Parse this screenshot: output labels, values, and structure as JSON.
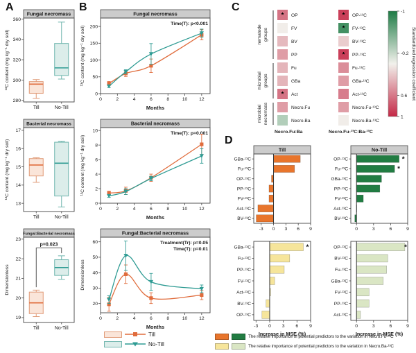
{
  "figure": {
    "panel_labels": {
      "A": "A",
      "B": "B",
      "C": "C",
      "D": "D"
    }
  },
  "legend": {
    "till": "Till",
    "no_till": "No-Till",
    "importance_fu": "The relative importance of potential predictors to the variation in Necro.Fu-¹³C",
    "importance_ba": "The relative importance of potential predictors to the variation in Necro.Ba-¹³C"
  },
  "colors": {
    "till": "#E06C3C",
    "till_fill": "#FAE5D9",
    "till_edge": "#E09A77",
    "no_till": "#2E9B93",
    "no_till_fill": "#DCEDEA",
    "no_till_edge": "#6FB5AD",
    "bar_orange": "#E8752C",
    "bar_green": "#217C42",
    "bar_yellow": "#F6E59B",
    "bar_lightgreen": "#DAE6C4",
    "header_bg": "#CCCCCC",
    "heat_red": "#C42846",
    "heat_green": "#1E7B45",
    "heat_mid": "#F2F1EC"
  },
  "chart_data": [
    {
      "id": "a1",
      "type": "box",
      "title": "Fungal necromass",
      "ylabel": "¹³C content (mg kg⁻¹ dry soil)",
      "ylim": [
        278.5,
        361
      ],
      "yticks": [
        280,
        300,
        320,
        340,
        360
      ],
      "categories": [
        "Till",
        "No-Till"
      ],
      "boxes": [
        {
          "group": "Till",
          "whisker_low": 282,
          "q1": 287,
          "median": 296,
          "q3": 298.5,
          "whisker_high": 300.5
        },
        {
          "group": "No-Till",
          "whisker_low": 301,
          "q1": 304.5,
          "median": 312,
          "q3": 336,
          "whisker_high": 357
        }
      ]
    },
    {
      "id": "a2",
      "type": "box",
      "title": "Bacterial necromass",
      "ylabel": "¹³C content (mg kg⁻¹ dry soil)",
      "ylim": [
        12.55,
        17.15
      ],
      "yticks": [
        13,
        14,
        15,
        16,
        17
      ],
      "categories": [
        "Till",
        "No-Till"
      ],
      "boxes": [
        {
          "group": "Till",
          "whisker_low": 14.15,
          "q1": 14.5,
          "median": 15.1,
          "q3": 15.45,
          "whisker_high": 15.5
        },
        {
          "group": "No-Till",
          "whisker_low": 12.8,
          "q1": 13.4,
          "median": 15.2,
          "q3": 16.35,
          "whisker_high": 16.4
        }
      ]
    },
    {
      "id": "a3",
      "type": "box",
      "title": "Fungal:Bacterial necromass",
      "ylabel": "Dimensionless",
      "ylim": [
        18.75,
        23.1
      ],
      "yticks": [
        19,
        20,
        21,
        22,
        23
      ],
      "categories": [
        "Till",
        "No-Till"
      ],
      "boxes": [
        {
          "group": "Till",
          "whisker_low": 19.05,
          "q1": 19.2,
          "median": 19.75,
          "q3": 20.3,
          "whisker_high": 20.4
        },
        {
          "group": "No-Till",
          "whisker_low": 20.95,
          "q1": 21.15,
          "median": 21.55,
          "q3": 21.95,
          "whisker_high": 22.15
        }
      ],
      "significance": {
        "label": "p=0.023",
        "bar_y": 22.55,
        "left_leg_to": 20.55,
        "right_leg_to": 22.28
      }
    },
    {
      "id": "b1",
      "type": "line",
      "title": "Fungal necromass",
      "annotations": [
        "Time(T): p<0.001"
      ],
      "xlabel": "Months",
      "ylabel": "¹³C content (mg kg⁻¹ dry soil)",
      "xlim": [
        0,
        13
      ],
      "xticks": [
        0,
        2,
        4,
        6,
        8,
        10,
        12
      ],
      "ylim": [
        0,
        225
      ],
      "yticks": [
        0,
        50,
        100,
        150,
        200
      ],
      "x": [
        1,
        3,
        6,
        12
      ],
      "series": [
        {
          "name": "Till",
          "marker": "square",
          "values": [
            30,
            60,
            83,
            175
          ],
          "errors": [
            6,
            9,
            20,
            15
          ]
        },
        {
          "name": "No-Till",
          "marker": "triangle",
          "values": [
            22,
            65,
            118,
            180
          ],
          "errors": [
            4,
            6,
            31,
            12
          ]
        }
      ]
    },
    {
      "id": "b2",
      "type": "line",
      "title": "Bacterial necromass",
      "annotations": [
        "Time(T): p=0.001"
      ],
      "xlabel": "Months",
      "ylabel": "¹³C content (mg kg⁻¹ dry soil)",
      "xlim": [
        0,
        13
      ],
      "xticks": [
        0,
        2,
        4,
        6,
        8,
        10,
        12
      ],
      "ylim": [
        0,
        10.4
      ],
      "yticks": [
        0,
        2,
        4,
        6,
        8,
        10
      ],
      "x": [
        1,
        3,
        6,
        12
      ],
      "series": [
        {
          "name": "Till",
          "marker": "square",
          "values": [
            1.4,
            1.7,
            3.5,
            8.1
          ],
          "errors": [
            0.25,
            0.5,
            0.5,
            1.4
          ]
        },
        {
          "name": "No-Till",
          "marker": "triangle",
          "values": [
            1.0,
            1.6,
            3.4,
            6.5
          ],
          "errors": [
            0.2,
            0.4,
            0.3,
            1.0
          ]
        }
      ]
    },
    {
      "id": "b3",
      "type": "line",
      "title": "Fungal:Bacterial necromass",
      "annotations": [
        "Treatment(Tr): p=0.05",
        "Time(T): p=0.01"
      ],
      "xlabel": "Months",
      "ylabel": "Dimensionless",
      "xlim": [
        0,
        13
      ],
      "xticks": [
        0,
        2,
        4,
        6,
        8,
        10,
        12
      ],
      "ylim": [
        14,
        63
      ],
      "yticks": [
        20,
        30,
        40,
        50,
        60
      ],
      "x": [
        1,
        3,
        6,
        12
      ],
      "series": [
        {
          "name": "Till",
          "marker": "square",
          "values": [
            19.5,
            39,
            23.5,
            25.5
          ],
          "errors": [
            4.5,
            6,
            3.5,
            3
          ]
        },
        {
          "name": "No-Till",
          "marker": "triangle",
          "values": [
            22.5,
            51,
            34,
            29.5
          ],
          "errors": [
            2.5,
            9.5,
            5.5,
            2.5
          ]
        }
      ]
    },
    {
      "id": "c",
      "type": "heatmap",
      "columns": [
        {
          "label": "Necro.Fu:Ba"
        },
        {
          "label": "Necro.Fu-¹³C:Ba-¹³C"
        }
      ],
      "row_groups": [
        {
          "label": "nematode groups",
          "rows": [
            0,
            3
          ]
        },
        {
          "label": "microbial groups",
          "rows": [
            4,
            6
          ]
        },
        {
          "label": "microbial necromass",
          "rows": [
            7,
            8
          ]
        }
      ],
      "rows": [
        {
          "labels": [
            "OP",
            "OP-¹³C"
          ],
          "values": [
            0.62,
            0.88
          ],
          "sig": [
            true,
            true
          ]
        },
        {
          "labels": [
            "FV",
            "FV-¹³C"
          ],
          "values": [
            0.02,
            -0.82
          ],
          "sig": [
            false,
            true
          ]
        },
        {
          "labels": [
            "BV",
            "BV-¹³C"
          ],
          "values": [
            0.28,
            0.18
          ],
          "sig": [
            false,
            false
          ]
        },
        {
          "labels": [
            "PP",
            "PP-¹³C"
          ],
          "values": [
            0.42,
            0.88
          ],
          "sig": [
            false,
            true
          ]
        },
        {
          "labels": [
            "Fu",
            "Fu-¹³C"
          ],
          "values": [
            0.3,
            0.5
          ],
          "sig": [
            false,
            false
          ]
        },
        {
          "labels": [
            "GBa",
            "GBa-¹³C"
          ],
          "values": [
            0.3,
            0.42
          ],
          "sig": [
            false,
            false
          ]
        },
        {
          "labels": [
            "Act",
            "Act-¹³C"
          ],
          "values": [
            0.62,
            0.58
          ],
          "sig": [
            true,
            false
          ]
        },
        {
          "labels": [
            "Necro.Fu",
            "Necro.Fu-¹³C"
          ],
          "values": [
            0.42,
            0.42
          ],
          "sig": [
            false,
            false
          ]
        },
        {
          "labels": [
            "Necro.Ba",
            "Necro.Ba-¹³C"
          ],
          "values": [
            -0.3,
            0.02
          ],
          "sig": [
            false,
            false
          ]
        }
      ],
      "colorbar": {
        "label": "Standardized regression coefficient",
        "domain": [
          -1,
          1
        ],
        "ticks": [
          -1,
          -0.2,
          0.6,
          1
        ]
      }
    },
    {
      "id": "d1",
      "type": "bar",
      "title": "Till",
      "color_key": "bar_orange",
      "categories": [
        "GBa-¹³C",
        "Fu-¹³C",
        "OP-¹³C",
        "PP-¹³C",
        "FV-¹³C",
        "Act-¹³C",
        "BV-¹³C"
      ],
      "values": [
        6.5,
        5.1,
        -0.5,
        -1.1,
        -1.1,
        -3.8,
        -4.2
      ],
      "sig": [
        false,
        false,
        false,
        false,
        false,
        false,
        false
      ],
      "xlim": [
        -4.8,
        9
      ],
      "xticks": [
        -3,
        0,
        3,
        6,
        9
      ]
    },
    {
      "id": "d2",
      "type": "bar",
      "title": "No-Till",
      "color_key": "bar_green",
      "categories": [
        "OP-¹³C",
        "Fu-¹³C",
        "GBa-¹³C",
        "PP-¹³C",
        "FV-¹³C",
        "Act-¹³C",
        "BV-¹³C"
      ],
      "values": [
        7.5,
        6.7,
        4.4,
        4.1,
        1.2,
        0.05,
        -0.3
      ],
      "sig": [
        true,
        true,
        false,
        false,
        false,
        false,
        false
      ],
      "xlim": [
        -1,
        9
      ],
      "xticks": [
        0,
        3,
        6,
        9
      ]
    },
    {
      "id": "d3",
      "type": "bar",
      "color_key": "bar_yellow",
      "xlabel": "Increase in MSE (%)",
      "categories": [
        "GBa-¹³C",
        "Fu-¹³C",
        "PP-¹³C",
        "FV-¹³C",
        "Act-¹³C",
        "BV-¹³C",
        "OP-¹³C"
      ],
      "values": [
        7.4,
        4.4,
        3.2,
        1.1,
        0.2,
        -0.8,
        -1.7
      ],
      "sig": [
        true,
        false,
        false,
        false,
        false,
        false,
        false
      ],
      "xlim": [
        -3.5,
        9
      ],
      "xticks": [
        -3,
        0,
        3,
        6,
        9
      ]
    },
    {
      "id": "d4",
      "type": "bar",
      "color_key": "bar_lightgreen",
      "xlabel": "Increase in MSE (%)",
      "categories": [
        "OP-¹³C",
        "BV-¹³C",
        "Fu-¹³C",
        "GBa-¹³C",
        "FV-¹³C",
        "PP-¹³C",
        "Act-¹³C"
      ],
      "values": [
        8.5,
        5.5,
        5.3,
        4.7,
        2.2,
        2.2,
        0.7
      ],
      "sig": [
        true,
        false,
        false,
        false,
        false,
        false,
        false
      ],
      "xlim": [
        -1,
        9
      ],
      "xticks": [
        0,
        3,
        6,
        9
      ]
    }
  ]
}
